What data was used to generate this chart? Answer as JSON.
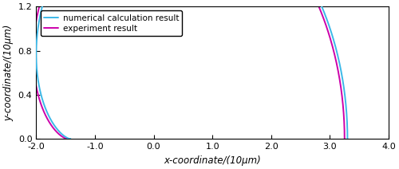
{
  "xlabel": "x-coordinate/(10μm)",
  "ylabel": "y-coordinate/(10μm)",
  "xlim": [
    -2.0,
    4.0
  ],
  "ylim": [
    0.0,
    1.2
  ],
  "xticks": [
    -2.0,
    -1.0,
    0.0,
    1.0,
    2.0,
    3.0,
    4.0
  ],
  "yticks": [
    0.0,
    0.4,
    0.8,
    1.2
  ],
  "numerical_color": "#3CB8E8",
  "experiment_color": "#CC00AA",
  "numerical_label": "numerical calculation result",
  "experiment_label": "experiment result",
  "background_color": "#ffffff",
  "line_width": 1.4,
  "legend_fontsize": 7.5,
  "axis_fontsize": 8.5,
  "tick_fontsize": 8
}
